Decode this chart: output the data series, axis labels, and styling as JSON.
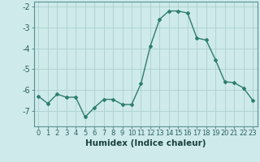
{
  "x": [
    0,
    1,
    2,
    3,
    4,
    5,
    6,
    7,
    8,
    9,
    10,
    11,
    12,
    13,
    14,
    15,
    16,
    17,
    18,
    19,
    20,
    21,
    22,
    23
  ],
  "y": [
    -6.3,
    -6.65,
    -6.2,
    -6.35,
    -6.35,
    -7.3,
    -6.85,
    -6.45,
    -6.45,
    -6.7,
    -6.7,
    -5.7,
    -3.9,
    -2.6,
    -2.2,
    -2.2,
    -2.3,
    -3.5,
    -3.6,
    -4.55,
    -5.6,
    -5.65,
    -5.9,
    -6.5
  ],
  "xlabel": "Humidex (Indice chaleur)",
  "ylim": [
    -7.75,
    -1.75
  ],
  "xlim": [
    -0.5,
    23.5
  ],
  "yticks": [
    -7,
    -6,
    -5,
    -4,
    -3,
    -2
  ],
  "xticks": [
    0,
    1,
    2,
    3,
    4,
    5,
    6,
    7,
    8,
    9,
    10,
    11,
    12,
    13,
    14,
    15,
    16,
    17,
    18,
    19,
    20,
    21,
    22,
    23
  ],
  "line_color": "#2e7d6f",
  "marker": "D",
  "marker_size": 2.0,
  "bg_color": "#ceeaea",
  "grid_color": "#aed0d0",
  "axis_color": "#5a9090",
  "tick_color": "#2e6060",
  "xlabel_color": "#1a4040",
  "xlabel_fontsize": 7.5,
  "ytick_fontsize": 7.0,
  "xtick_fontsize": 6.0,
  "linewidth": 1.0
}
